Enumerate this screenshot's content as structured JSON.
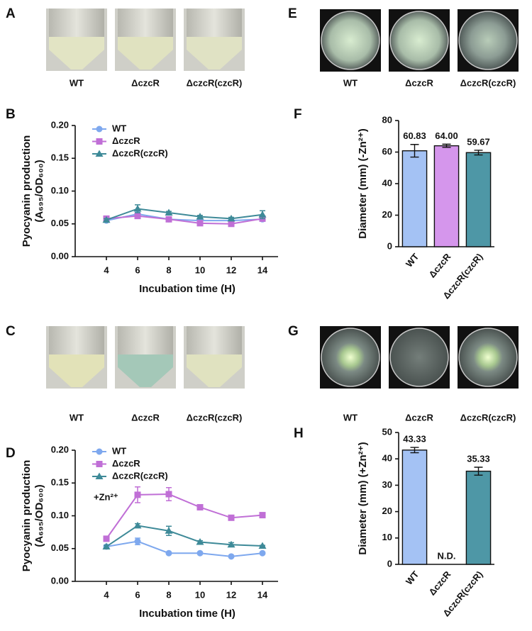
{
  "photo_panels": [
    {
      "panel": "A",
      "labels": [
        "WT",
        "ΔczcR",
        "ΔczcR(czcR)"
      ]
    },
    {
      "panel": "C",
      "labels": [
        "WT",
        "ΔczcR",
        "ΔczcR(czcR)"
      ]
    },
    {
      "panel": "E",
      "labels": [
        "WT",
        "ΔczcR",
        "ΔczcR(czcR)"
      ]
    },
    {
      "panel": "G",
      "labels": [
        "WT",
        "ΔczcR",
        "ΔczcR(czcR)"
      ]
    }
  ],
  "chart_data": [
    {
      "panel": "B",
      "type": "line",
      "y_label": [
        "Pyocyanin production",
        "(A₆₉₅/OD₆₀₀)"
      ],
      "x_label": "Incubation time (H)",
      "x": [
        4,
        6,
        8,
        10,
        12,
        14
      ],
      "xlim": [
        2,
        15
      ],
      "xticks": [
        4,
        6,
        8,
        10,
        12,
        14
      ],
      "ylim": [
        0,
        0.2
      ],
      "yticks": [
        {
          "value": 0,
          "label": "0.00"
        },
        {
          "value": 0.05,
          "label": "0.05"
        },
        {
          "value": 0.1,
          "label": "0.10"
        },
        {
          "value": 0.15,
          "label": "0.15"
        },
        {
          "value": 0.2,
          "label": "0.20"
        }
      ],
      "series": [
        {
          "name": "WT",
          "color": "#7ea8ee",
          "marker": "circle",
          "values": [
            0.055,
            0.065,
            0.057,
            0.055,
            0.055,
            0.057
          ],
          "errors": [
            0.002,
            0.002,
            0.002,
            0.002,
            0.002,
            0.003
          ]
        },
        {
          "name": "ΔczcR",
          "color": "#c06fd6",
          "marker": "square",
          "values": [
            0.058,
            0.062,
            0.057,
            0.051,
            0.05,
            0.058
          ],
          "errors": [
            0.002,
            0.002,
            0.002,
            0.002,
            0.002,
            0.002
          ]
        },
        {
          "name": "ΔczcR(czcR)",
          "color": "#3e8a98",
          "marker": "triangle",
          "values": [
            0.056,
            0.073,
            0.067,
            0.061,
            0.058,
            0.064
          ],
          "errors": [
            0.002,
            0.006,
            0.002,
            0.002,
            0.002,
            0.006
          ]
        }
      ]
    },
    {
      "panel": "D",
      "type": "line",
      "y_label": [
        "Pyocyanin production",
        "(A₆₉₅/OD₆₀₀)"
      ],
      "x_label": "Incubation time (H)",
      "annotation": "+Zn²⁺",
      "x": [
        4,
        6,
        8,
        10,
        12,
        14
      ],
      "xlim": [
        2,
        15
      ],
      "xticks": [
        4,
        6,
        8,
        10,
        12,
        14
      ],
      "ylim": [
        0,
        0.2
      ],
      "yticks": [
        {
          "value": 0,
          "label": "0.00"
        },
        {
          "value": 0.05,
          "label": "0.05"
        },
        {
          "value": 0.1,
          "label": "0.10"
        },
        {
          "value": 0.15,
          "label": "0.15"
        },
        {
          "value": 0.2,
          "label": "0.20"
        }
      ],
      "series": [
        {
          "name": "WT",
          "color": "#7ea8ee",
          "marker": "circle",
          "values": [
            0.053,
            0.061,
            0.043,
            0.043,
            0.038,
            0.043
          ],
          "errors": [
            0.002,
            0.005,
            0.001,
            0.001,
            0.001,
            0.001
          ]
        },
        {
          "name": "ΔczcR",
          "color": "#c06fd6",
          "marker": "square",
          "values": [
            0.065,
            0.132,
            0.133,
            0.113,
            0.097,
            0.101
          ],
          "errors": [
            0.002,
            0.012,
            0.01,
            0.002,
            0.002,
            0.002
          ]
        },
        {
          "name": "ΔczcR(czcR)",
          "color": "#3e8a98",
          "marker": "triangle",
          "values": [
            0.053,
            0.085,
            0.077,
            0.06,
            0.056,
            0.054
          ],
          "errors": [
            0.002,
            0.003,
            0.007,
            0.002,
            0.003,
            0.001
          ]
        }
      ]
    },
    {
      "panel": "F",
      "type": "bar",
      "y_label": "Diameter (mm) (-Zn²⁺)",
      "categories": [
        "WT",
        "ΔczcR",
        "ΔczcR(czcR)"
      ],
      "values": [
        60.83,
        64.0,
        59.67
      ],
      "value_labels": [
        "60.83",
        "64.00",
        "59.67"
      ],
      "errors": [
        4,
        1,
        1.5
      ],
      "colors": [
        "#a4c2f4",
        "#d596ec",
        "#4e97a6"
      ],
      "ylim": [
        0,
        80
      ],
      "yticks": [
        0,
        20,
        40,
        60,
        80
      ]
    },
    {
      "panel": "H",
      "type": "bar",
      "y_label": "Diameter (mm) (+Zn²⁺)",
      "categories": [
        "WT",
        "ΔczcR",
        "ΔczcR(czcR)"
      ],
      "values": [
        43.33,
        null,
        35.33
      ],
      "value_labels": [
        "43.33",
        "N.D.",
        "35.33"
      ],
      "errors": [
        1,
        null,
        1.5
      ],
      "colors": [
        "#a4c2f4",
        "#d596ec",
        "#4e97a6"
      ],
      "ylim": [
        0,
        50
      ],
      "yticks": [
        0,
        10,
        20,
        30,
        40,
        50
      ]
    }
  ]
}
